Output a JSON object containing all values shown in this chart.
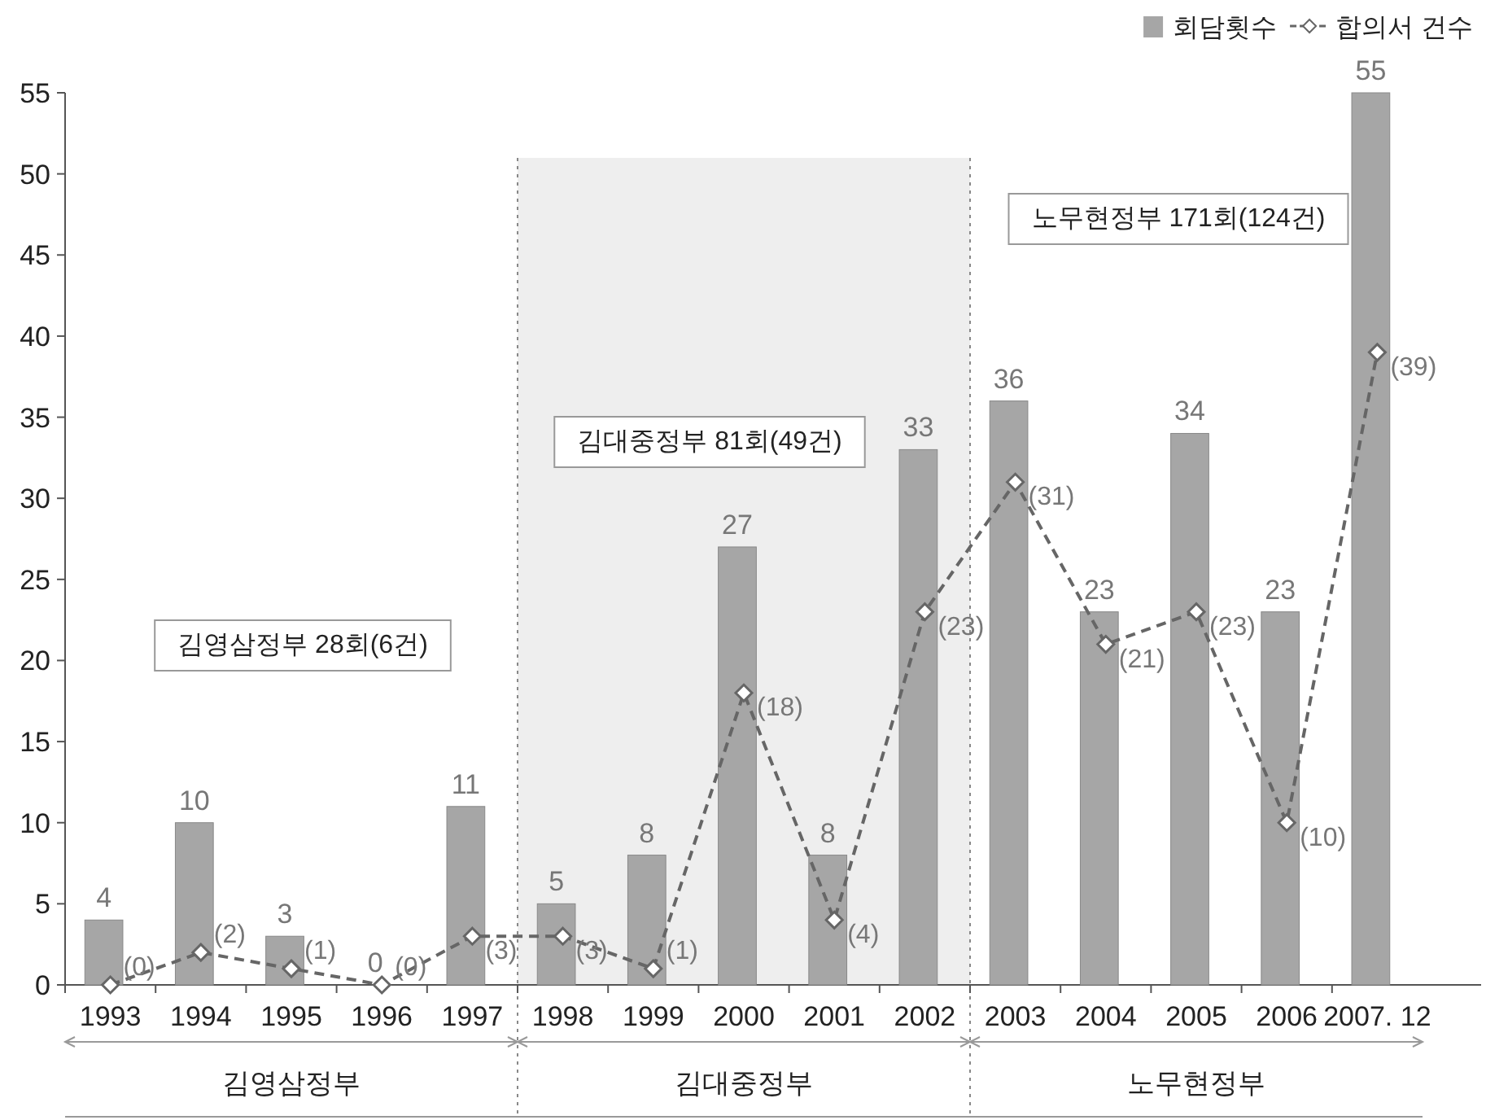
{
  "chart_data": {
    "type": "bar",
    "categories": [
      "1993",
      "1994",
      "1995",
      "1996",
      "1997",
      "1998",
      "1999",
      "2000",
      "2001",
      "2002",
      "2003",
      "2004",
      "2005",
      "2006",
      "2007. 12"
    ],
    "series": [
      {
        "name": "회담횟수",
        "color": "#a6a6a6",
        "values": [
          4,
          10,
          3,
          0,
          11,
          5,
          8,
          27,
          8,
          33,
          36,
          23,
          34,
          23,
          55
        ],
        "value_labels": [
          "4",
          "10",
          "3",
          "0",
          "11",
          "5",
          "8",
          "27",
          "8",
          "33",
          "36",
          "23",
          "34",
          "23",
          "55"
        ]
      },
      {
        "name": "합의서 건수",
        "type": "line",
        "color": "#666666",
        "marker": "diamond",
        "line_style": "dashed",
        "values": [
          0,
          2,
          1,
          0,
          3,
          3,
          1,
          18,
          4,
          23,
          31,
          21,
          23,
          10,
          39
        ],
        "value_labels": [
          "(0)",
          "(2)",
          "(1)",
          "(0)",
          "(3)",
          "(3)",
          "(1)",
          "(18)",
          "(4)",
          "(23)",
          "(31)",
          "(21)",
          "(23)",
          "(10)",
          "(39)"
        ]
      }
    ],
    "ylim": [
      0,
      55
    ],
    "yticks": [
      0,
      5,
      10,
      15,
      20,
      25,
      30,
      35,
      40,
      45,
      50,
      55
    ],
    "grid": false,
    "legend": "top right",
    "bands": [
      {
        "axis": "x",
        "from": "1998",
        "to": "2002",
        "color": "#eeeeee"
      }
    ],
    "annotations": [
      "김영삼정부 28회(6건)",
      "김대중정부 81회(49건)",
      "노무현정부 171회(124건)",
      "김영삼정부",
      "김대중정부",
      "노무현정부"
    ]
  }
}
